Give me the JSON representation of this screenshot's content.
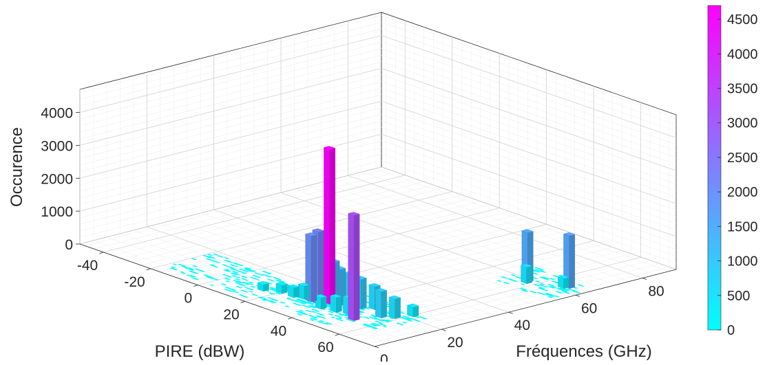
{
  "chart_data": {
    "type": "bar3d",
    "xlabel": "PIRE (dBW)",
    "ylabel": "Fréquences (GHz)",
    "zlabel": "Occurence",
    "xlim": [
      -50,
      75
    ],
    "ylim": [
      0,
      90
    ],
    "zlim": [
      0,
      4700
    ],
    "x_ticks": [
      -40,
      -20,
      0,
      20,
      40,
      60
    ],
    "y_ticks": [
      0,
      20,
      40,
      60,
      80
    ],
    "z_ticks": [
      0,
      1000,
      2000,
      3000,
      4000
    ],
    "grid": true,
    "colormap": {
      "low_color": "#00ffff",
      "high_color": "#ff00ff",
      "min": 0,
      "max": 4700,
      "ticks": [
        0,
        500,
        1000,
        1500,
        2000,
        2500,
        3000,
        3500,
        4000,
        4500
      ]
    },
    "bars": [
      {
        "x": 36,
        "y": 14,
        "z": 4700
      },
      {
        "x": 52,
        "y": 10,
        "z": 3200
      },
      {
        "x": 32,
        "y": 13,
        "z": 1700
      },
      {
        "x": 31,
        "y": 12,
        "z": 2000
      },
      {
        "x": 34,
        "y": 12,
        "z": 2200
      },
      {
        "x": 35,
        "y": 16,
        "z": 1200
      },
      {
        "x": 39,
        "y": 15,
        "z": 1100
      },
      {
        "x": 42,
        "y": 16,
        "z": 1000
      },
      {
        "x": 45,
        "y": 17,
        "z": 900
      },
      {
        "x": 48,
        "y": 19,
        "z": 700
      },
      {
        "x": 55,
        "y": 16,
        "z": 800
      },
      {
        "x": 58,
        "y": 18,
        "z": 600
      },
      {
        "x": 28,
        "y": 12,
        "z": 400
      },
      {
        "x": 25,
        "y": 11,
        "z": 300
      },
      {
        "x": 47,
        "y": 12,
        "z": 500
      },
      {
        "x": 43,
        "y": 11,
        "z": 450
      },
      {
        "x": 60,
        "y": 22,
        "z": 300
      },
      {
        "x": 56,
        "y": 59,
        "z": 1500
      },
      {
        "x": 68,
        "y": 63,
        "z": 1600
      },
      {
        "x": 57,
        "y": 58,
        "z": 500
      },
      {
        "x": 67,
        "y": 62,
        "z": 300
      },
      {
        "x": 20,
        "y": 11,
        "z": 250
      },
      {
        "x": 15,
        "y": 9,
        "z": 200
      },
      {
        "x": 38,
        "y": 10,
        "z": 350
      }
    ]
  }
}
